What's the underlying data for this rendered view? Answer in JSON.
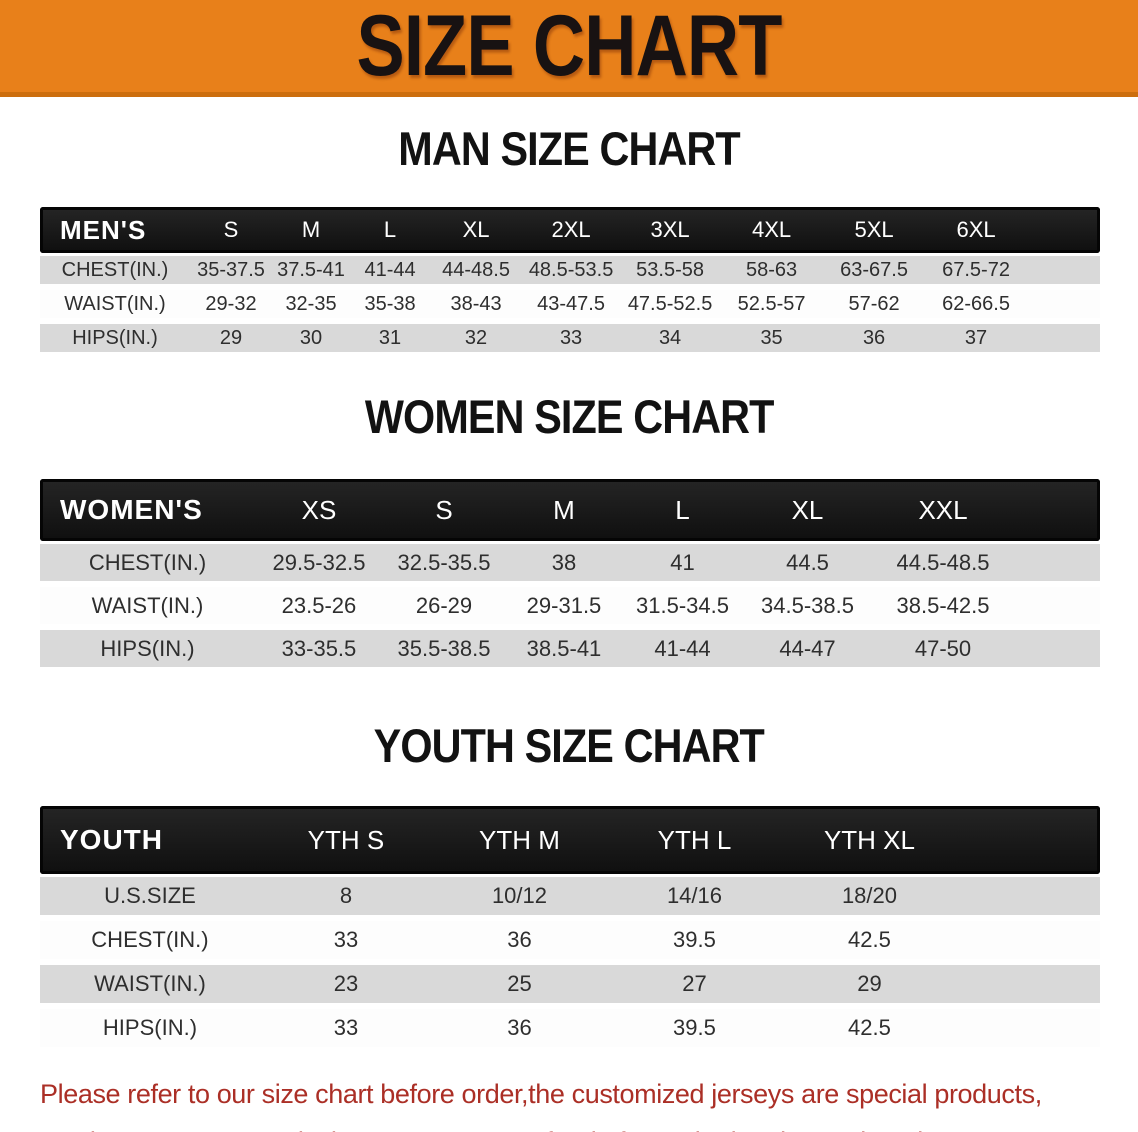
{
  "banner": {
    "title": "SIZE CHART"
  },
  "colors": {
    "banner_orange": "#e8801a",
    "banner_edge": "#cc6e0e",
    "bar_black": "#1a1a1a",
    "row_gray": "#d9d9d9",
    "row_white": "#fdfdfd",
    "heading_text": "#121212",
    "data_text": "#2e2e2e",
    "disclaimer_red": "#ab2f26"
  },
  "chart_data": [
    {
      "type": "table",
      "title": "MAN SIZE CHART",
      "header_label": "MEN'S",
      "columns": [
        "S",
        "M",
        "L",
        "XL",
        "2XL",
        "3XL",
        "4XL",
        "5XL",
        "6XL"
      ],
      "rows": [
        {
          "label": "CHEST(IN.)",
          "values": [
            "35-37.5",
            "37.5-41",
            "41-44",
            "44-48.5",
            "48.5-53.5",
            "53.5-58",
            "58-63",
            "63-67.5",
            "67.5-72"
          ]
        },
        {
          "label": "WAIST(IN.)",
          "values": [
            "29-32",
            "32-35",
            "35-38",
            "38-43",
            "43-47.5",
            "47.5-52.5",
            "52.5-57",
            "57-62",
            "62-66.5"
          ]
        },
        {
          "label": "HIPS(IN.)",
          "values": [
            "29",
            "30",
            "31",
            "32",
            "33",
            "34",
            "35",
            "36",
            "37"
          ]
        }
      ]
    },
    {
      "type": "table",
      "title": "WOMEN SIZE CHART",
      "header_label": "WOMEN'S",
      "columns": [
        "XS",
        "S",
        "M",
        "L",
        "XL",
        "XXL"
      ],
      "rows": [
        {
          "label": "CHEST(IN.)",
          "values": [
            "29.5-32.5",
            "32.5-35.5",
            "38",
            "41",
            "44.5",
            "44.5-48.5"
          ]
        },
        {
          "label": "WAIST(IN.)",
          "values": [
            "23.5-26",
            "26-29",
            "29-31.5",
            "31.5-34.5",
            "34.5-38.5",
            "38.5-42.5"
          ]
        },
        {
          "label": "HIPS(IN.)",
          "values": [
            "33-35.5",
            "35.5-38.5",
            "38.5-41",
            "41-44",
            "44-47",
            "47-50"
          ]
        }
      ]
    },
    {
      "type": "table",
      "title": "YOUTH SIZE CHART",
      "header_label": "YOUTH",
      "columns": [
        "YTH S",
        "YTH M",
        "YTH L",
        "YTH XL"
      ],
      "rows": [
        {
          "label": "U.S.SIZE",
          "values": [
            "8",
            "10/12",
            "14/16",
            "18/20"
          ]
        },
        {
          "label": "CHEST(IN.)",
          "values": [
            "33",
            "36",
            "39.5",
            "42.5"
          ]
        },
        {
          "label": "WAIST(IN.)",
          "values": [
            "23",
            "25",
            "27",
            "29"
          ]
        },
        {
          "label": "HIPS(IN.)",
          "values": [
            "33",
            "36",
            "39.5",
            "42.5"
          ]
        }
      ]
    }
  ],
  "disclaimer": {
    "line1": "Please refer to our size chart before order,the customized jerseys are special products,",
    "line2": "we don't accept cancel, change, teturn or refund after order has been placed!"
  }
}
